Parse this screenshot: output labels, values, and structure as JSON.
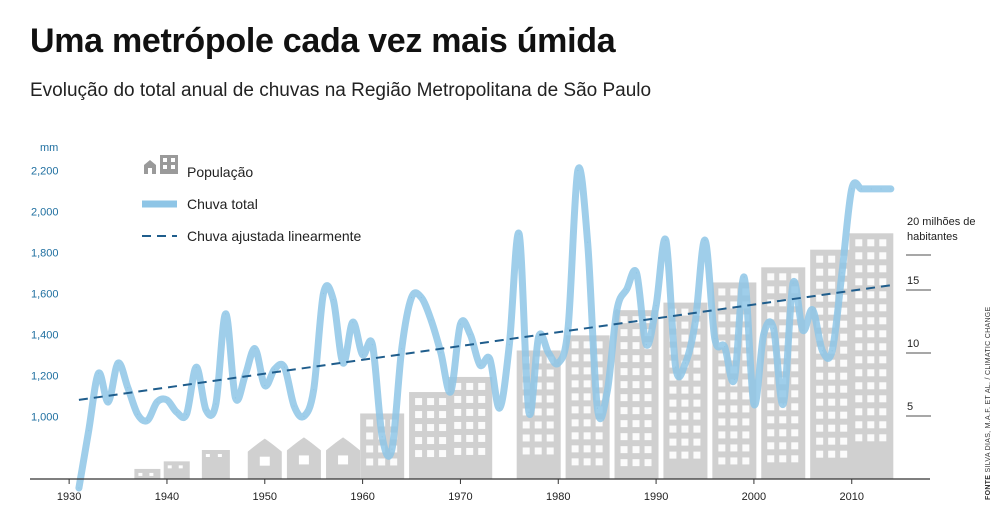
{
  "header": {
    "title": "Uma metrópole cada vez mais úmida",
    "subtitle": "Evolução do total anual de chuvas na Região Metropolitana de São Paulo"
  },
  "source": {
    "label": "FONTE",
    "text": "SILVA DIAS, M.A.F. ET AL. / CLIMATIC CHANGE"
  },
  "colors": {
    "rain": "#8ec5e6",
    "trend": "#1f5d8c",
    "buildings": "#d0d0d0",
    "building_windows": "#ffffff",
    "axis": "#333333",
    "rain_axis_text": "#1f6fa0"
  },
  "chart_data": {
    "type": "line",
    "title": "Uma metrópole cada vez mais úmida",
    "y_unit": "mm",
    "y_range": [
      650,
      2300
    ],
    "y_ticks": [
      {
        "value": 1000,
        "label": "1,000"
      },
      {
        "value": 1200,
        "label": "1,200"
      },
      {
        "value": 1400,
        "label": "1,400"
      },
      {
        "value": 1600,
        "label": "1,600"
      },
      {
        "value": 1800,
        "label": "1,800"
      },
      {
        "value": 2000,
        "label": "2,000"
      },
      {
        "value": 2200,
        "label": "2,200"
      }
    ],
    "x_range": [
      1926,
      2018
    ],
    "x_ticks": [
      1930,
      1940,
      1950,
      1960,
      1970,
      1980,
      1990,
      2000,
      2010
    ],
    "legend": {
      "population": "População",
      "rain": "Chuva total",
      "trend": "Chuva ajustada linearmente"
    },
    "population_axis": {
      "ticks": [
        {
          "value": 5,
          "label": "5"
        },
        {
          "value": 10,
          "label": "10"
        },
        {
          "value": 15,
          "label": "15"
        },
        {
          "value": 20,
          "label": "20 milhões de habitantes"
        }
      ]
    },
    "series": [
      {
        "name": "Chuva total",
        "x": [
          1931,
          1932,
          1933,
          1934,
          1935,
          1936,
          1937,
          1938,
          1939,
          1940,
          1941,
          1942,
          1943,
          1944,
          1945,
          1946,
          1947,
          1948,
          1949,
          1950,
          1951,
          1952,
          1953,
          1954,
          1955,
          1956,
          1957,
          1958,
          1959,
          1960,
          1961,
          1962,
          1963,
          1964,
          1965,
          1966,
          1967,
          1968,
          1969,
          1970,
          1971,
          1972,
          1973,
          1974,
          1975,
          1976,
          1977,
          1978,
          1979,
          1980,
          1981,
          1982,
          1983,
          1984,
          1985,
          1986,
          1987,
          1988,
          1989,
          1990,
          1991,
          1992,
          1993,
          1994,
          1995,
          1996,
          1997,
          1998,
          1999,
          2000,
          2001,
          2002,
          2003,
          2004,
          2005,
          2006,
          2007,
          2008,
          2009,
          2010,
          2011,
          2012,
          2013,
          2014
        ],
        "y": [
          650,
          930,
          1210,
          1070,
          1260,
          1140,
          1010,
          980,
          1070,
          1080,
          1020,
          1010,
          1240,
          1030,
          1060,
          1500,
          1090,
          1200,
          1330,
          1150,
          1230,
          1240,
          1050,
          1000,
          1130,
          1600,
          1570,
          1260,
          1460,
          1300,
          1350,
          900,
          840,
          1330,
          1580,
          1580,
          1470,
          1310,
          1120,
          1450,
          1400,
          1250,
          1280,
          1040,
          1350,
          1890,
          1020,
          1390,
          1310,
          1260,
          1430,
          2200,
          1850,
          1040,
          1120,
          1520,
          1620,
          1700,
          1350,
          1540,
          1860,
          1240,
          1260,
          1460,
          1860,
          1380,
          1340,
          1180,
          1680,
          1060,
          1400,
          1430,
          1060,
          1650,
          1420,
          1520,
          1320,
          1320,
          1700,
          2110,
          2110,
          2110,
          2110,
          2110
        ]
      },
      {
        "name": "Chuva ajustada linearmente",
        "x": [
          1931,
          2014
        ],
        "y": [
          1080,
          1640
        ]
      },
      {
        "name": "População",
        "unit": "milhões de habitantes",
        "x": [
          1938,
          1941,
          1945,
          1950,
          1954,
          1958,
          1962,
          1967,
          1971,
          1978,
          1983,
          1988,
          1993,
          1998,
          2003,
          2008,
          2012
        ],
        "y": [
          0.8,
          1.4,
          2.3,
          3.2,
          3.3,
          3.3,
          5.2,
          6.9,
          8.1,
          10.2,
          11.4,
          13.4,
          14.0,
          15.6,
          16.8,
          18.2,
          19.5
        ]
      }
    ]
  }
}
